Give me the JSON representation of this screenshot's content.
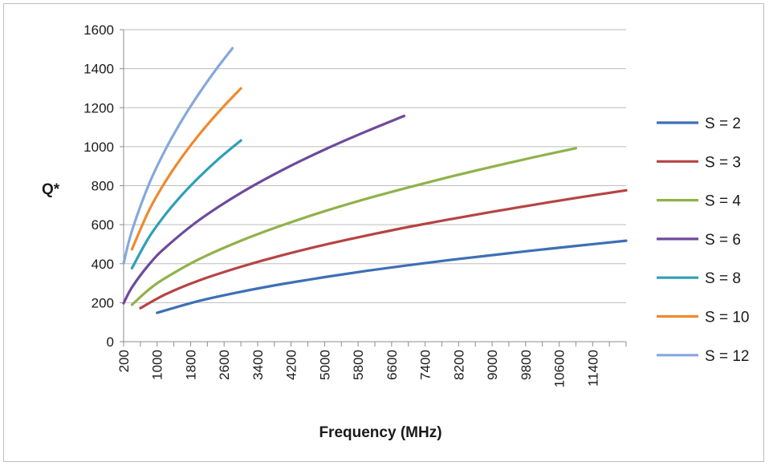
{
  "chart_data": {
    "type": "line",
    "title": "",
    "xlabel": "Frequency (MHz)",
    "ylabel": "Q*",
    "ylim": [
      0,
      1600
    ],
    "yticks": [
      0,
      200,
      400,
      600,
      800,
      1000,
      1200,
      1400,
      1600
    ],
    "xlim": [
      200,
      12200
    ],
    "xticks": [
      200,
      1000,
      1800,
      2600,
      3400,
      4200,
      5000,
      5800,
      6600,
      7400,
      8200,
      9000,
      9800,
      10600,
      11400
    ],
    "xtick_labels": [
      "200",
      "1000",
      "1800",
      "2600",
      "3400",
      "4200",
      "5000",
      "5800",
      "6600",
      "7400",
      "8200",
      "9000",
      "9800",
      "10600",
      "11400"
    ],
    "grid": "horizontal",
    "legend_position": "right",
    "series": [
      {
        "name": "S = 2",
        "color": "#3d6fb6",
        "x": [
          1000,
          2000,
          3000,
          4000,
          5000,
          6000,
          7000,
          8000,
          9000,
          10000,
          11000,
          12200
        ],
        "y": [
          148,
          209,
          256,
          296,
          331,
          363,
          392,
          419,
          444,
          468,
          491,
          518
        ]
      },
      {
        "name": "S = 3",
        "color": "#b64444",
        "x": [
          600,
          1200,
          2000,
          3000,
          4000,
          5000,
          6000,
          7000,
          8000,
          9000,
          10000,
          11000,
          12200
        ],
        "y": [
          172,
          243,
          314,
          384,
          444,
          497,
          544,
          588,
          628,
          666,
          702,
          737,
          776
        ]
      },
      {
        "name": "S = 4",
        "color": "#8fb249",
        "x": [
          400,
          800,
          1200,
          2000,
          3000,
          4000,
          5000,
          6000,
          7000,
          8000,
          9000,
          10000,
          11000
        ],
        "y": [
          189,
          267,
          327,
          423,
          518,
          598,
          669,
          733,
          791,
          846,
          897,
          946,
          992
        ]
      },
      {
        "name": "S = 6",
        "color": "#6d4a9b",
        "x": [
          200,
          400,
          800,
          1200,
          2000,
          3000,
          4000,
          5000,
          6000,
          6900
        ],
        "y": [
          197,
          279,
          394,
          483,
          623,
          763,
          881,
          985,
          1079,
          1158
        ]
      },
      {
        "name": "S = 8",
        "color": "#2f9fb8",
        "x": [
          400,
          800,
          1200,
          1600,
          2000,
          2500,
          3000
        ],
        "y": [
          377,
          533,
          653,
          754,
          843,
          943,
          1032
        ]
      },
      {
        "name": "S = 10",
        "color": "#ee8a2f",
        "x": [
          400,
          800,
          1200,
          1600,
          2000,
          2500,
          3000
        ],
        "y": [
          474,
          671,
          822,
          949,
          1061,
          1186,
          1299
        ]
      },
      {
        "name": "S = 12",
        "color": "#85a8dc",
        "x": [
          200,
          400,
          800,
          1200,
          1600,
          2000,
          2400,
          2800
        ],
        "y": [
          402,
          569,
          805,
          986,
          1138,
          1272,
          1394,
          1505
        ]
      }
    ]
  }
}
